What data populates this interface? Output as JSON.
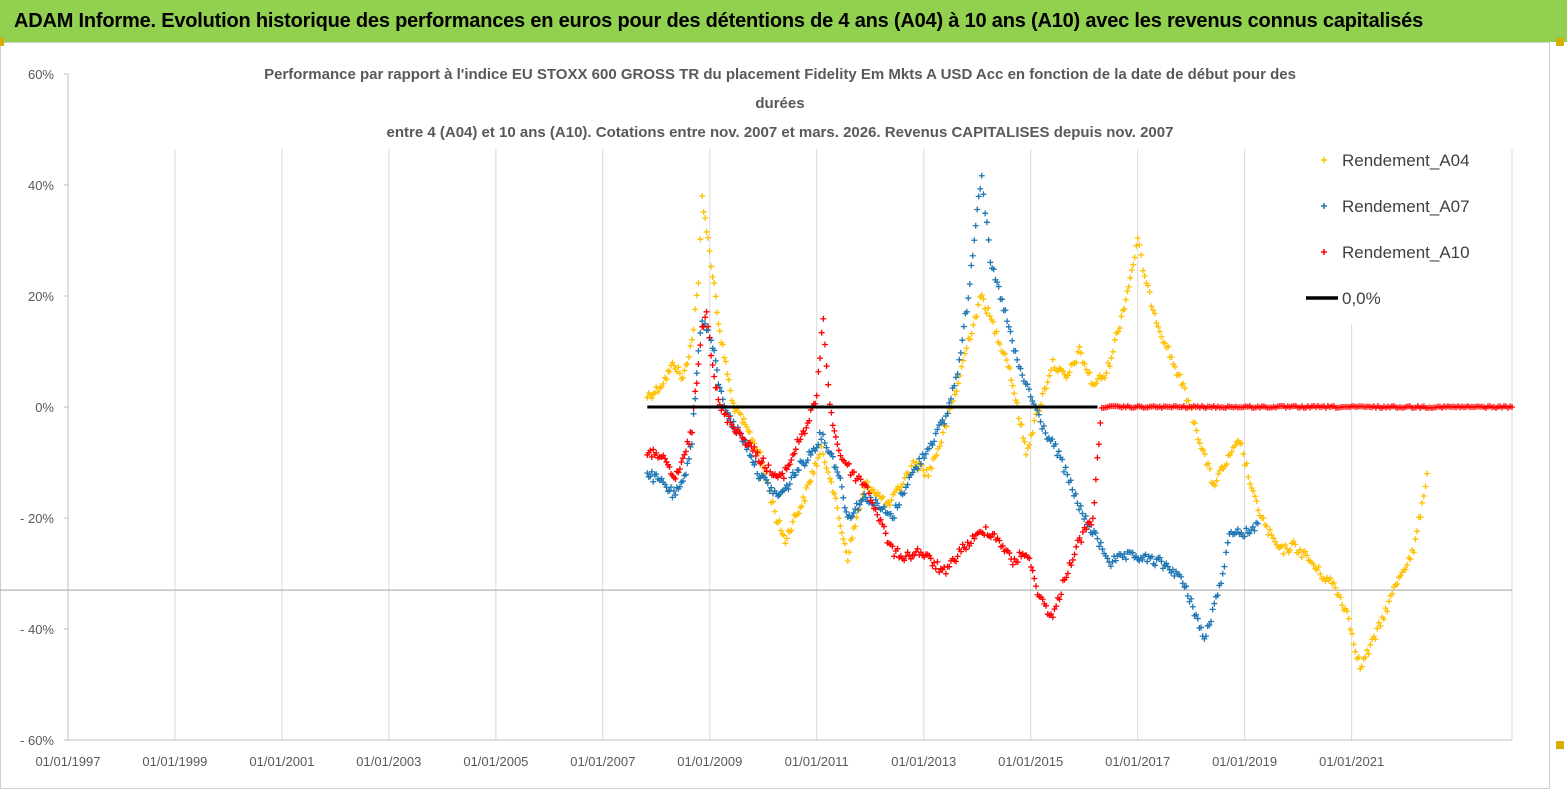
{
  "banner": {
    "title": "ADAM Informe. Evolution historique des performances en euros pour des détentions de 4 ans (A04) à 10 ans (A10) avec les revenus connus capitalisés"
  },
  "chart_data": {
    "type": "scatter",
    "title_lines": [
      "Performance par rapport à l'indice EU STOXX 600 GROSS TR  du placement Fidelity Em Mkts A USD Acc en fonction de la date de début pour des",
      "durées",
      "entre 4 (A04) et 10 ans (A10). Cotations entre nov. 2007 et mars. 2026. Revenus CAPITALISES depuis nov. 2007"
    ],
    "xlabel": "",
    "ylabel": "",
    "x_ticks": [
      "01/01/1997",
      "01/01/1999",
      "01/01/2001",
      "01/01/2003",
      "01/01/2005",
      "01/01/2007",
      "01/01/2009",
      "01/01/2011",
      "01/01/2013",
      "01/01/2015",
      "01/01/2017",
      "01/01/2019",
      "01/01/2021"
    ],
    "x_range": [
      "1997-01-01",
      "2024-01-01"
    ],
    "y_ticks": [
      "60%",
      "40%",
      "20%",
      "0%",
      "- 20%",
      "- 40%",
      "- 60%"
    ],
    "y_tick_values": [
      60,
      40,
      20,
      0,
      -20,
      -40,
      -60
    ],
    "ylim": [
      -60,
      60
    ],
    "grid": "vertical",
    "legend_position": "top-right",
    "series": [
      {
        "name": "Rendement_A04",
        "color": "#ffc000",
        "marker": "plus",
        "points": [
          [
            "2007-11-01",
            2
          ],
          [
            "2008-01-01",
            3
          ],
          [
            "2008-03-01",
            5
          ],
          [
            "2008-05-01",
            8
          ],
          [
            "2008-07-01",
            5
          ],
          [
            "2008-09-01",
            12
          ],
          [
            "2008-10-15",
            22
          ],
          [
            "2008-11-10",
            38
          ],
          [
            "2008-12-10",
            32
          ],
          [
            "2009-01-10",
            26
          ],
          [
            "2009-02-10",
            20
          ],
          [
            "2009-03-10",
            13
          ],
          [
            "2009-04-20",
            8
          ],
          [
            "2009-06-01",
            1
          ],
          [
            "2009-08-01",
            -2
          ],
          [
            "2009-10-01",
            -5
          ],
          [
            "2009-12-01",
            -8
          ],
          [
            "2010-02-01",
            -14
          ],
          [
            "2010-04-01",
            -20
          ],
          [
            "2010-06-01",
            -24
          ],
          [
            "2010-08-01",
            -20
          ],
          [
            "2010-10-01",
            -17
          ],
          [
            "2010-12-01",
            -12
          ],
          [
            "2011-02-01",
            -8
          ],
          [
            "2011-04-01",
            -12
          ],
          [
            "2011-06-01",
            -20
          ],
          [
            "2011-08-01",
            -27
          ],
          [
            "2011-10-01",
            -20
          ],
          [
            "2011-12-01",
            -14
          ],
          [
            "2012-02-01",
            -15
          ],
          [
            "2012-05-01",
            -18
          ],
          [
            "2012-08-01",
            -14
          ],
          [
            "2012-11-01",
            -10
          ],
          [
            "2013-02-01",
            -12
          ],
          [
            "2013-05-01",
            -6
          ],
          [
            "2013-08-01",
            2
          ],
          [
            "2013-11-01",
            12
          ],
          [
            "2014-02-01",
            20
          ],
          [
            "2014-05-01",
            14
          ],
          [
            "2014-08-01",
            8
          ],
          [
            "2014-10-01",
            0
          ],
          [
            "2014-12-01",
            -8
          ],
          [
            "2015-03-01",
            0
          ],
          [
            "2015-06-01",
            8
          ],
          [
            "2015-09-01",
            5
          ],
          [
            "2015-12-01",
            10
          ],
          [
            "2016-03-01",
            4
          ],
          [
            "2016-06-01",
            6
          ],
          [
            "2016-09-01",
            15
          ],
          [
            "2016-11-01",
            22
          ],
          [
            "2017-01-01",
            30
          ],
          [
            "2017-03-01",
            22
          ],
          [
            "2017-06-01",
            14
          ],
          [
            "2017-09-01",
            8
          ],
          [
            "2017-12-01",
            2
          ],
          [
            "2018-03-01",
            -6
          ],
          [
            "2018-06-01",
            -14
          ],
          [
            "2018-09-01",
            -10
          ],
          [
            "2018-12-01",
            -6
          ],
          [
            "2019-03-01",
            -16
          ],
          [
            "2019-06-01",
            -22
          ],
          [
            "2019-09-01",
            -26
          ],
          [
            "2019-12-01",
            -25
          ],
          [
            "2020-03-01",
            -27
          ],
          [
            "2020-06-01",
            -30
          ],
          [
            "2020-09-01",
            -32
          ],
          [
            "2020-12-01",
            -37
          ],
          [
            "2021-03-01",
            -47
          ],
          [
            "2021-06-01",
            -42
          ],
          [
            "2021-09-01",
            -36
          ],
          [
            "2021-12-01",
            -30
          ],
          [
            "2022-03-01",
            -26
          ],
          [
            "2022-06-01",
            -12
          ]
        ]
      },
      {
        "name": "Rendement_A07",
        "color": "#1f77b4",
        "marker": "plus",
        "points": [
          [
            "2007-11-01",
            -12
          ],
          [
            "2008-01-01",
            -13
          ],
          [
            "2008-03-01",
            -14
          ],
          [
            "2008-05-01",
            -16
          ],
          [
            "2008-07-01",
            -14
          ],
          [
            "2008-09-01",
            -6
          ],
          [
            "2008-10-15",
            10
          ],
          [
            "2008-11-10",
            16
          ],
          [
            "2008-12-10",
            14
          ],
          [
            "2009-01-10",
            12
          ],
          [
            "2009-02-10",
            8
          ],
          [
            "2009-03-10",
            3
          ],
          [
            "2009-04-20",
            0
          ],
          [
            "2009-06-01",
            -3
          ],
          [
            "2009-08-01",
            -5
          ],
          [
            "2009-10-01",
            -8
          ],
          [
            "2009-12-01",
            -12
          ],
          [
            "2010-02-01",
            -14
          ],
          [
            "2010-04-01",
            -16
          ],
          [
            "2010-06-01",
            -15
          ],
          [
            "2010-08-01",
            -12
          ],
          [
            "2010-10-01",
            -10
          ],
          [
            "2010-12-01",
            -8
          ],
          [
            "2011-02-01",
            -5
          ],
          [
            "2011-04-01",
            -8
          ],
          [
            "2011-06-01",
            -12
          ],
          [
            "2011-08-01",
            -20
          ],
          [
            "2011-10-01",
            -18
          ],
          [
            "2011-12-01",
            -16
          ],
          [
            "2012-03-01",
            -18
          ],
          [
            "2012-06-01",
            -20
          ],
          [
            "2012-09-01",
            -14
          ],
          [
            "2012-12-01",
            -10
          ],
          [
            "2013-03-01",
            -6
          ],
          [
            "2013-06-01",
            -2
          ],
          [
            "2013-09-01",
            8
          ],
          [
            "2013-11-01",
            20
          ],
          [
            "2014-01-01",
            36
          ],
          [
            "2014-02-01",
            42
          ],
          [
            "2014-04-01",
            26
          ],
          [
            "2014-07-01",
            18
          ],
          [
            "2014-10-01",
            8
          ],
          [
            "2015-01-01",
            2
          ],
          [
            "2015-04-01",
            -4
          ],
          [
            "2015-07-01",
            -8
          ],
          [
            "2015-10-01",
            -14
          ],
          [
            "2016-01-01",
            -20
          ],
          [
            "2016-04-01",
            -24
          ],
          [
            "2016-07-01",
            -28
          ],
          [
            "2016-10-01",
            -27
          ],
          [
            "2017-01-01",
            -27
          ],
          [
            "2017-06-01",
            -28
          ],
          [
            "2017-10-01",
            -30
          ],
          [
            "2018-01-01",
            -35
          ],
          [
            "2018-04-01",
            -42
          ],
          [
            "2018-07-01",
            -34
          ],
          [
            "2018-10-01",
            -22
          ],
          [
            "2019-01-01",
            -23
          ],
          [
            "2019-04-01",
            -21
          ]
        ]
      },
      {
        "name": "Rendement_A10",
        "color": "#ff0000",
        "marker": "plus",
        "points": [
          [
            "2007-11-01",
            -9
          ],
          [
            "2008-01-01",
            -8
          ],
          [
            "2008-03-01",
            -10
          ],
          [
            "2008-05-01",
            -13
          ],
          [
            "2008-07-01",
            -10
          ],
          [
            "2008-09-01",
            -4
          ],
          [
            "2008-10-15",
            8
          ],
          [
            "2008-11-10",
            14
          ],
          [
            "2008-12-10",
            18
          ],
          [
            "2009-01-10",
            10
          ],
          [
            "2009-02-10",
            4
          ],
          [
            "2009-03-10",
            0
          ],
          [
            "2009-05-01",
            -2
          ],
          [
            "2009-07-01",
            -4
          ],
          [
            "2009-09-01",
            -6
          ],
          [
            "2009-11-01",
            -8
          ],
          [
            "2010-01-01",
            -10
          ],
          [
            "2010-03-01",
            -12
          ],
          [
            "2010-05-01",
            -13
          ],
          [
            "2010-07-01",
            -10
          ],
          [
            "2010-09-01",
            -6
          ],
          [
            "2010-11-01",
            -3
          ],
          [
            "2011-01-01",
            2
          ],
          [
            "2011-02-15",
            16
          ],
          [
            "2011-04-01",
            0
          ],
          [
            "2011-06-01",
            -8
          ],
          [
            "2011-09-01",
            -12
          ],
          [
            "2011-12-01",
            -14
          ],
          [
            "2012-03-01",
            -20
          ],
          [
            "2012-06-01",
            -26
          ],
          [
            "2012-09-01",
            -27
          ],
          [
            "2012-12-01",
            -26
          ],
          [
            "2013-03-01",
            -28
          ],
          [
            "2013-06-01",
            -30
          ],
          [
            "2013-09-01",
            -26
          ],
          [
            "2013-12-01",
            -24
          ],
          [
            "2014-03-01",
            -22
          ],
          [
            "2014-06-01",
            -24
          ],
          [
            "2014-09-01",
            -28
          ],
          [
            "2014-12-01",
            -26
          ],
          [
            "2015-03-01",
            -34
          ],
          [
            "2015-06-01",
            -38
          ],
          [
            "2015-09-01",
            -30
          ],
          [
            "2015-12-01",
            -24
          ],
          [
            "2016-03-01",
            -20
          ],
          [
            "2016-05-01",
            0
          ],
          [
            "2024-01-01",
            0
          ]
        ]
      },
      {
        "name": "0,0%",
        "color": "#000000",
        "marker": "line",
        "points": [
          [
            "2007-11-01",
            0
          ],
          [
            "2016-04-01",
            0
          ]
        ]
      }
    ],
    "reference_lines": [
      {
        "y": -33,
        "color": "#b4b4b4"
      }
    ]
  }
}
